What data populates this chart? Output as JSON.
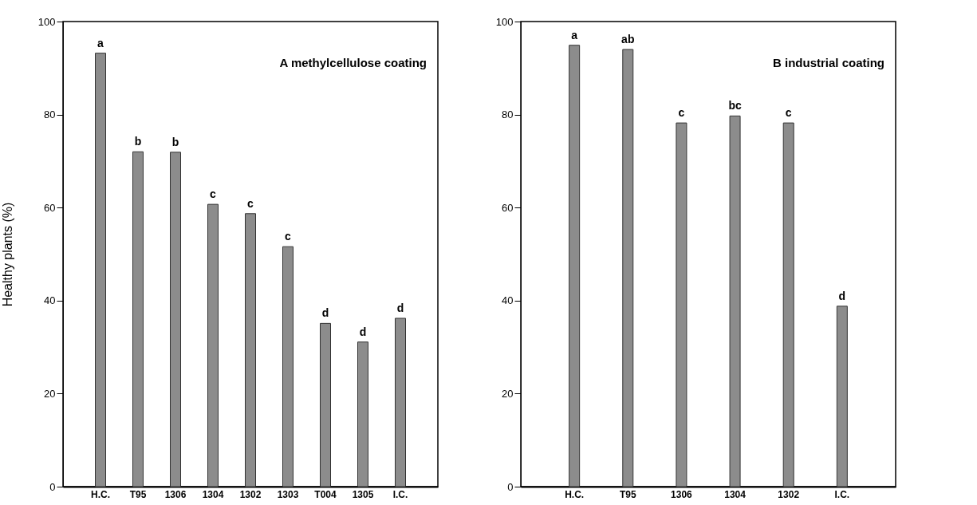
{
  "chart_data": [
    {
      "type": "bar",
      "title": "A  methylcellulose coating",
      "ylabel": "Healthy plants (%)",
      "categories": [
        "H.C.",
        "T95",
        "1306",
        "1304",
        "1302",
        "1303",
        "T004",
        "1305",
        "I.C."
      ],
      "values": [
        93.2,
        72.0,
        71.9,
        60.7,
        58.7,
        51.6,
        35.1,
        31.1,
        36.2
      ],
      "value_labels": [
        "a",
        "b",
        "b",
        "c",
        "c",
        "c",
        "d",
        "d",
        "d"
      ],
      "color": "#8c8c8c",
      "ylim": [
        0,
        100
      ],
      "yticks": [
        0,
        20,
        40,
        60,
        80,
        100
      ]
    },
    {
      "type": "bar",
      "title": "B  industrial coating",
      "categories": [
        "H.C.",
        "T95",
        "1306",
        "1304",
        "1302",
        "I.C."
      ],
      "values": [
        94.9,
        94.0,
        78.2,
        79.7,
        78.2,
        38.8
      ],
      "value_labels": [
        "a",
        "ab",
        "c",
        "bc",
        "c",
        "d"
      ],
      "color": "#8c8c8c",
      "ylim": [
        0,
        100
      ],
      "yticks": [
        0,
        20,
        40,
        60,
        80,
        100
      ]
    }
  ]
}
